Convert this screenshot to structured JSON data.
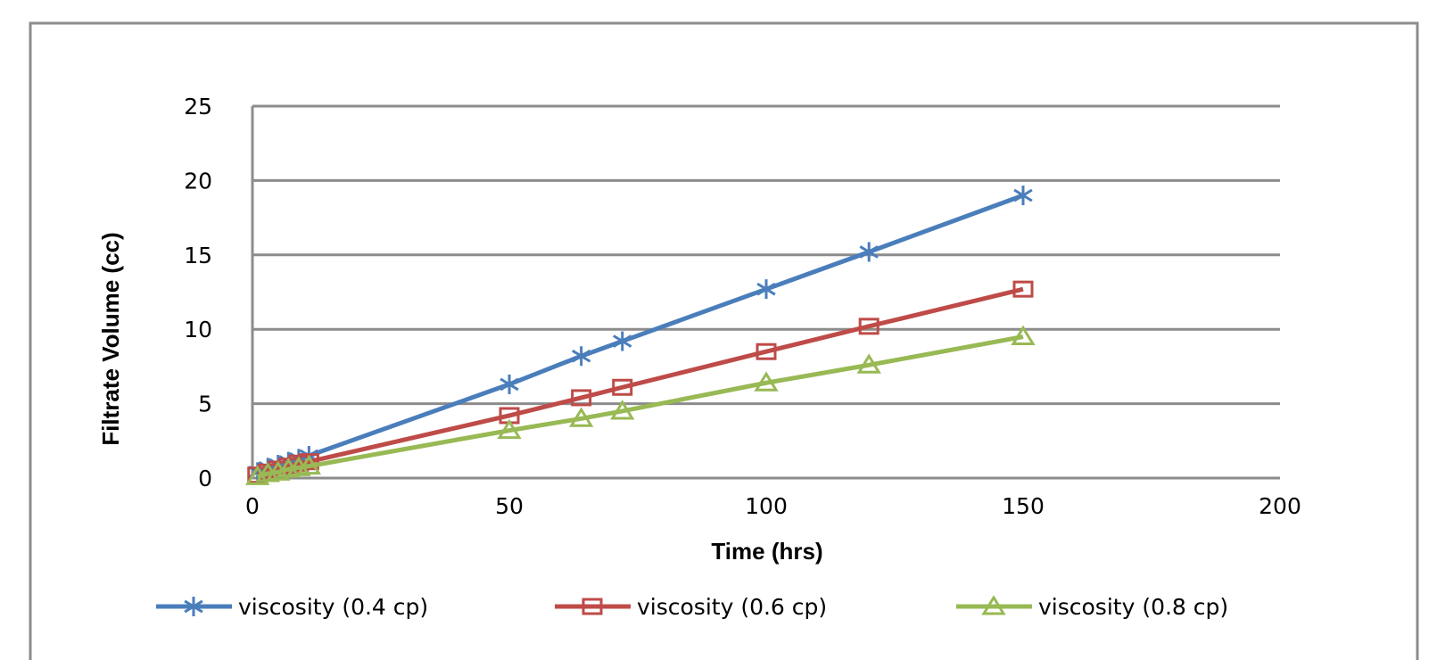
{
  "chart_data": {
    "type": "line",
    "title": "",
    "xlabel": "Time (hrs)",
    "ylabel": "Filtrate Volume (cc)",
    "xlim": [
      0,
      200
    ],
    "ylim": [
      0,
      25
    ],
    "xticks": [
      0,
      50,
      100,
      150,
      200
    ],
    "yticks": [
      0,
      5,
      10,
      15,
      20,
      25
    ],
    "grid": "horizontal",
    "legend": "bottom",
    "x": [
      1,
      3,
      5,
      7,
      9,
      11,
      50,
      64,
      72,
      100,
      120,
      150
    ],
    "series": [
      {
        "name": "viscosity (0.4 cp)",
        "color": "#4a7ebb",
        "marker": "asterisk",
        "values": [
          0.4,
          0.7,
          0.9,
          1.1,
          1.3,
          1.5,
          6.3,
          8.2,
          9.2,
          12.7,
          15.2,
          19.0
        ]
      },
      {
        "name": "viscosity (0.6 cp)",
        "color": "#be4b48",
        "marker": "square",
        "values": [
          0.2,
          0.4,
          0.6,
          0.8,
          1.0,
          1.1,
          4.2,
          5.4,
          6.1,
          8.5,
          10.2,
          12.7
        ]
      },
      {
        "name": "viscosity (0.8 cp)",
        "color": "#98b954",
        "marker": "triangle",
        "values": [
          0.1,
          0.3,
          0.4,
          0.6,
          0.7,
          0.8,
          3.2,
          4.0,
          4.5,
          6.4,
          7.6,
          9.5
        ]
      }
    ]
  }
}
